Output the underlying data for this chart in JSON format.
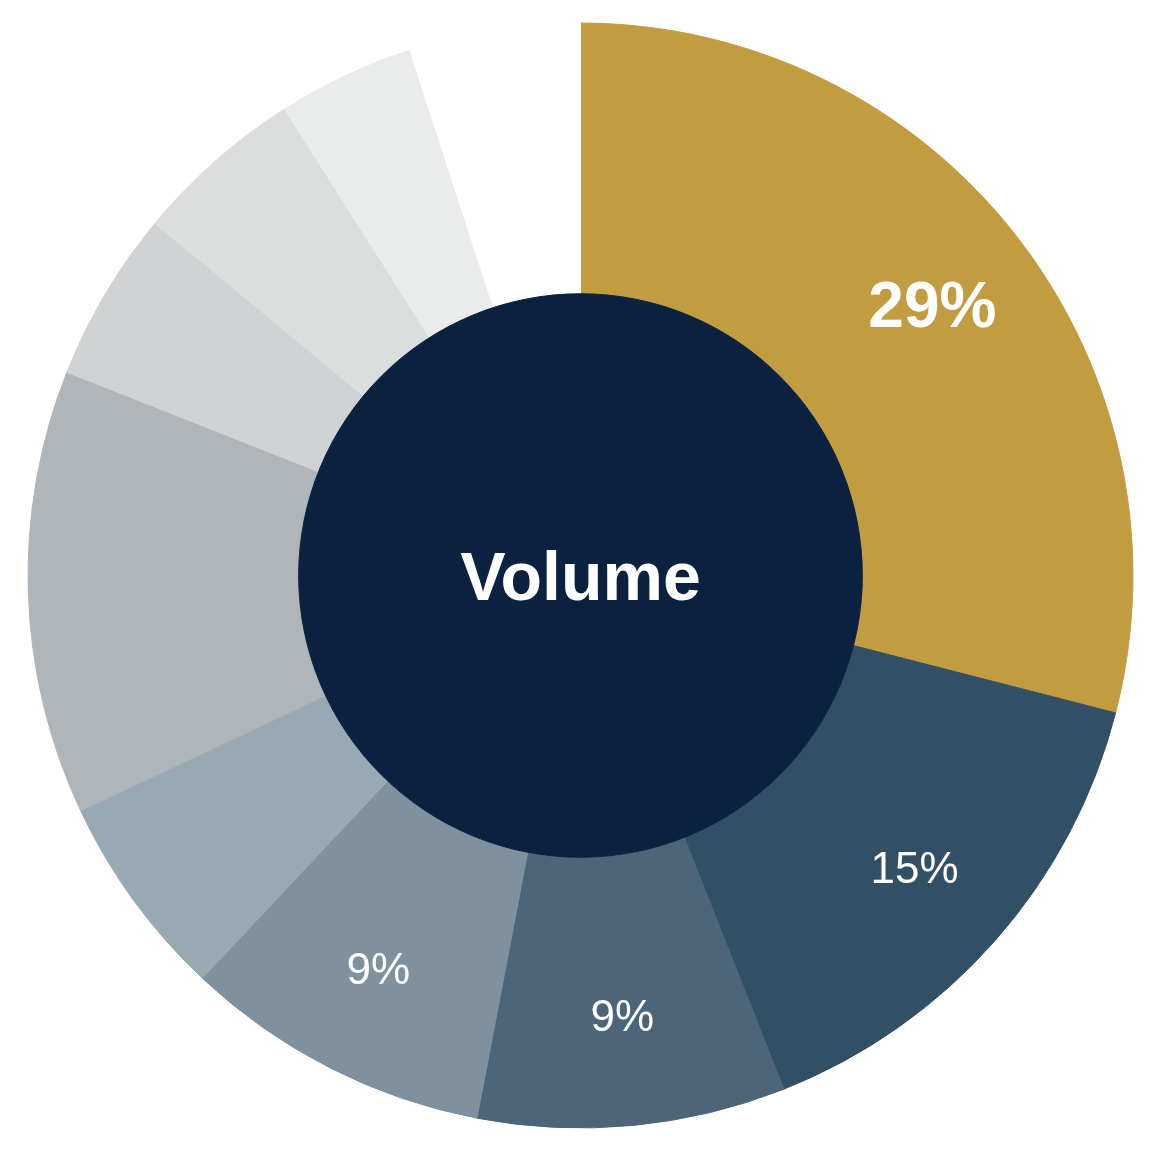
{
  "chart_data": {
    "type": "donut",
    "title": "Volume",
    "categories": [
      null,
      null,
      null,
      null,
      null,
      null,
      null,
      null,
      null,
      null
    ],
    "values": [
      29,
      15,
      9,
      9,
      6,
      13,
      5,
      5,
      4,
      5
    ],
    "colors": [
      "#c19d40",
      "#325065",
      "#4d6579",
      "#7f919f",
      "#99a9b4",
      "#b0b5b9",
      "#d0d2d3",
      "#dcdedd",
      "#eaeceb",
      "#ffffff"
    ],
    "value_labels": [
      "29%",
      "15%",
      "9%",
      "9%",
      null,
      null,
      null,
      null,
      null,
      null
    ]
  }
}
